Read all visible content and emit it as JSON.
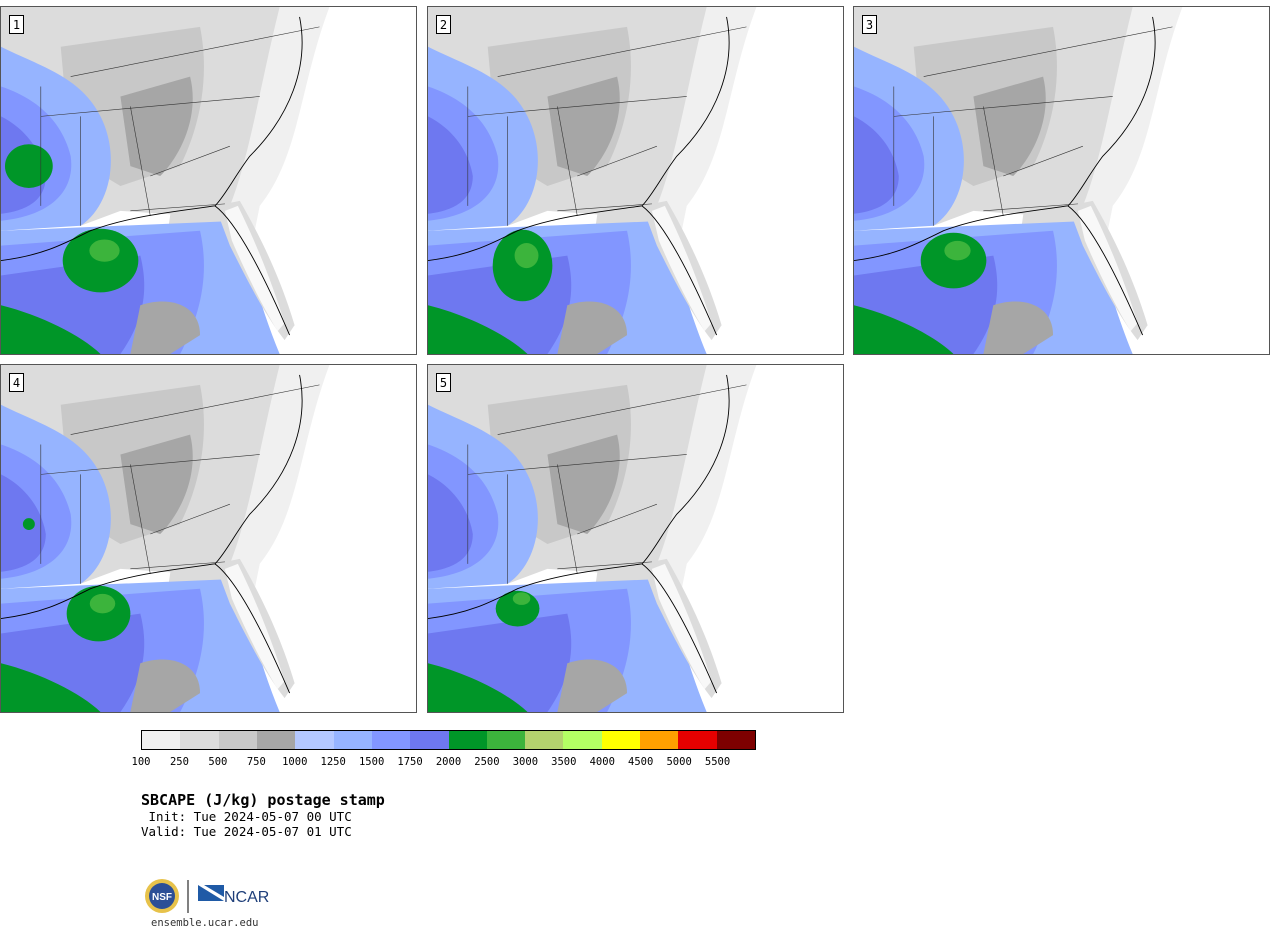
{
  "panels": [
    {
      "label": "1"
    },
    {
      "label": "2"
    },
    {
      "label": "3"
    },
    {
      "label": "4"
    },
    {
      "label": "5"
    }
  ],
  "colorbar": {
    "colors": [
      "#f0f0f0",
      "#dcdcdc",
      "#c8c8c8",
      "#a6a6a6",
      "#b4c8ff",
      "#96b4ff",
      "#8296ff",
      "#6e78f0",
      "#009628",
      "#3cb43c",
      "#b4d26e",
      "#b4ff64",
      "#ffff00",
      "#ffa000",
      "#e60000",
      "#7d0000"
    ],
    "tick_labels": [
      "100",
      "250",
      "500",
      "750",
      "1000",
      "1250",
      "1500",
      "1750",
      "2000",
      "2500",
      "3000",
      "3500",
      "4000",
      "4500",
      "5000",
      "5500"
    ]
  },
  "title": "SBCAPE (J/kg) postage stamp",
  "init": " Init: Tue 2024-05-07 00 UTC",
  "valid": "Valid: Tue 2024-05-07 01 UTC",
  "logo": {
    "left": "NSF",
    "right": "NCAR"
  },
  "website": "ensemble.ucar.edu"
}
